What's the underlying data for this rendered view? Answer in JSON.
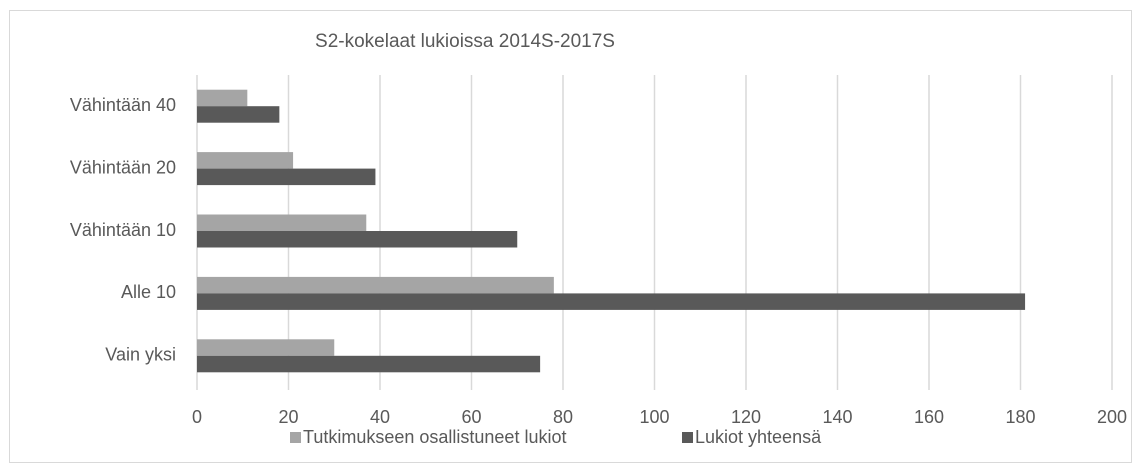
{
  "chart_data": {
    "type": "hbar",
    "title": "S2-kokelaat lukioissa 2014S-2017S",
    "categories": [
      "Vähintään 40",
      "Vähintään 20",
      "Vähintään 10",
      "Alle 10",
      "Vain yksi"
    ],
    "series": [
      {
        "name": "Tutkimukseen osallistuneet lukiot",
        "color": "#a5a5a5",
        "values": [
          11,
          21,
          37,
          78,
          30
        ]
      },
      {
        "name": "Lukiot yhteensä",
        "color": "#595959",
        "values": [
          18,
          39,
          70,
          181,
          75
        ]
      }
    ],
    "xlim": [
      0,
      200
    ],
    "xticks": [
      0,
      20,
      40,
      60,
      80,
      100,
      120,
      140,
      160,
      180,
      200
    ],
    "grid": true
  }
}
